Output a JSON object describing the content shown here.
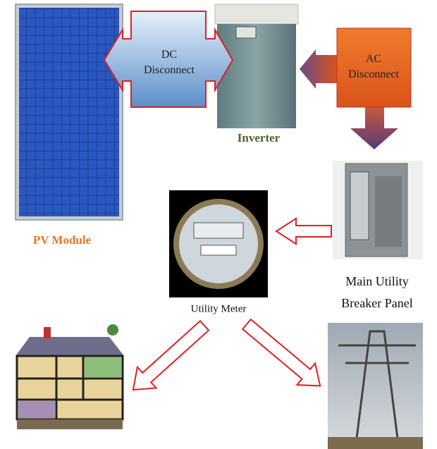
{
  "pv_module": {
    "label": "PV Module"
  },
  "dc_disconnect": {
    "label": [
      "DC",
      "Disconnect"
    ]
  },
  "inverter": {
    "label": "Inverter"
  },
  "ac_disconnect": {
    "label": [
      "AC",
      "Disconnect"
    ]
  },
  "breaker_panel": {
    "label": [
      "Main Utility",
      "Breaker Panel"
    ]
  },
  "utility_meter": {
    "label": "Utility Meter"
  }
}
